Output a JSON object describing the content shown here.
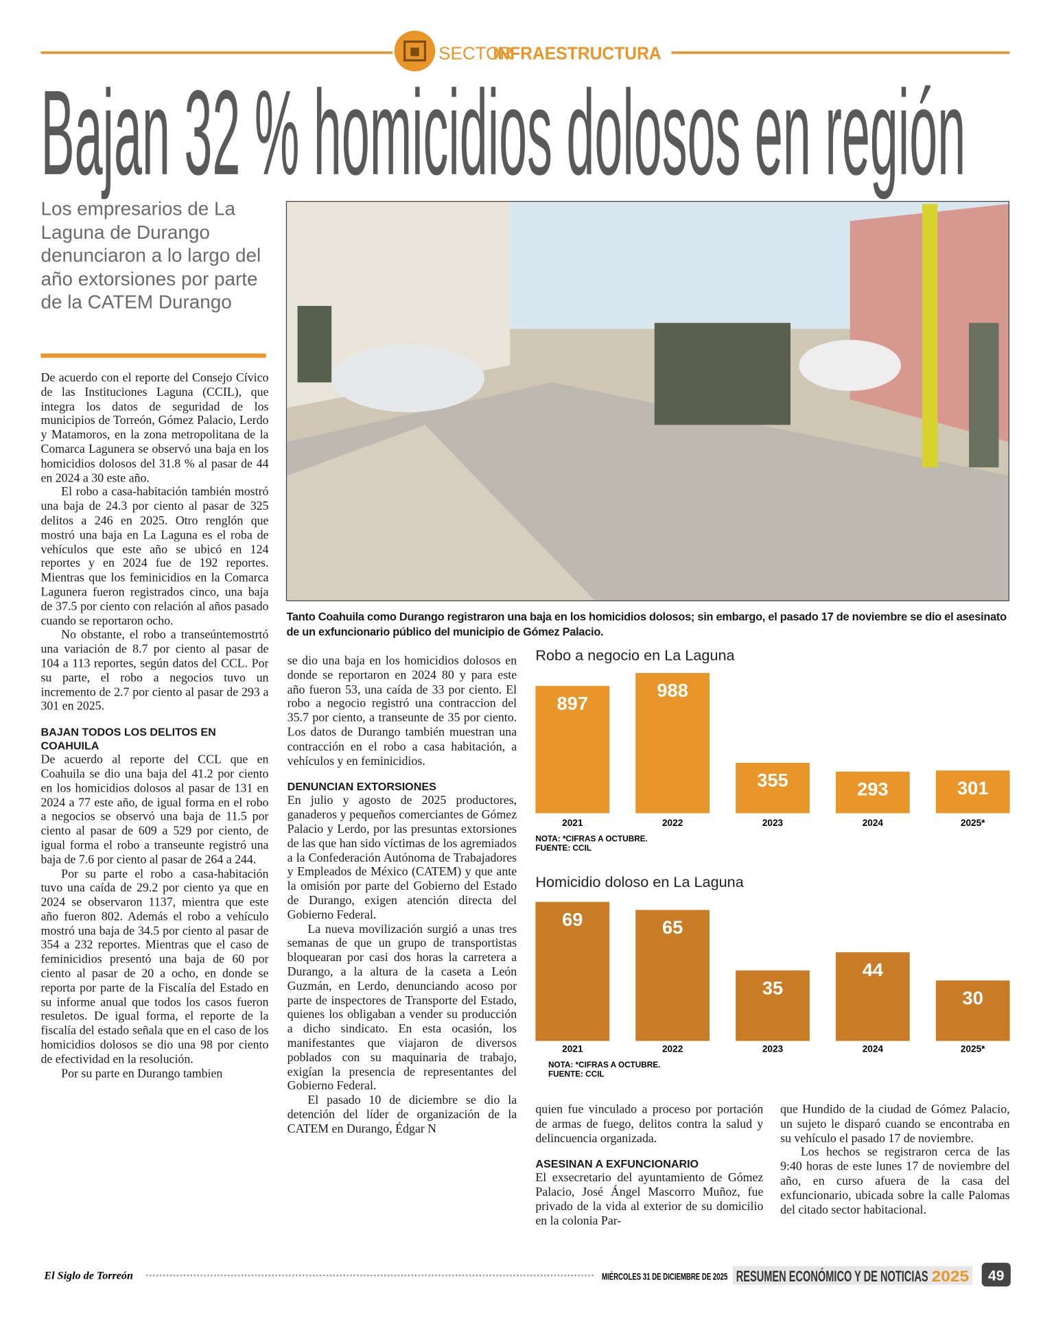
{
  "header": {
    "section_prefix": "SECTOR",
    "section": "INFRAESTRUCTURA",
    "title": "Bajan 32 % homicidios dolosos en región"
  },
  "deck": "Los empresarios de La Laguna de Durango denunciaron a lo largo del año extorsiones por parte de la CATEM Durango",
  "photo_caption": "Tanto Coahuila como Durango registraron una baja en los homicidios dolosos; sin embargo, el pasado 17 de noviembre se dio el asesinato de un exfuncionario público del municipio de Gómez Palacio.",
  "article": {
    "columns": [
      [
        {
          "p": "De acuerdo con el reporte del Consejo Cívico de las Instituciones Laguna (CCIL), que integra los datos de seguridad de los municipios de Torreón, Gómez Palacio, Lerdo y Matamoros, en la zona metropolitana de la Comarca Lagunera se observó una baja en los homicidios dolosos del 31.8 % al pasar de 44 en 2024 a 30 este año."
        },
        {
          "p": "El robo a casa-habitación también mostró una baja de 24.3 por ciento al pasar de 325 delitos a 246 en 2025. Otro renglón que mostró una baja en La Laguna es el roba de vehículos que este año se ubicó en 124 reportes y en 2024 fue de 192 reportes. Mientras que los feminicidios en la Comarca Lagunera fueron registrados cinco, una baja de 37.5 por ciento con relación al años pasado cuando se reportaron ocho."
        },
        {
          "p": "No obstante, el robo a transeúntemostrtó una variación de 8.7 por ciento al pasar de 104 a 113 reportes, según datos del CCL. Por su parte, el robo a negocios tuvo un incremento de 2.7 por ciento al pasar de 293 a 301 en 2025."
        },
        {
          "h": "BAJAN TODOS LOS DELITOS EN COAHUILA"
        },
        {
          "p": "De acuerdo al reporte del CCL que en Coahuila se dio una baja del 41.2 por ciento en los homicidios dolosos al pasar de 131 en 2024 a 77 este año, de igual forma en el robo a negocios se observó una baja de 11.5 por ciento al pasar de 609 a 529 por ciento, de igual forma el robo a transeunte registró una baja de 7.6 por ciento al pasar de 264 a 244."
        },
        {
          "p": "Por su parte el robo a casa-habitación tuvo una caída de 29.2 por ciento ya que en 2024 se observaron 1137, mientra que este año fueron 802. Además el robo a vehículo mostró una baja de 34.5 por ciento al pasar de 354 a 232 reportes. Mientras que el caso de feminicidios presentó una baja de 60 por ciento al pasar de 20 a ocho, en donde se reporta por parte de la Fiscalía del Estado en su informe anual que todos los casos fueron resuletos. De igual forma, el reporte de la fiscalía del estado señala que en el caso de los homicidios dolosos se dio una 98 por ciento de efectividad en la resolución."
        },
        {
          "p": "Por su parte en Durango tambien"
        }
      ],
      [
        {
          "p": "se dio una baja en los homicidios dolosos en donde se reportaron en 2024 80 y para este año fueron 53, una caída de 33 por ciento. El robo a negocio registró una contraccion del 35.7 por ciento, a transeunte de 35 por ciento. Los datos de Durango también muestran una contracción en el robo a casa habitación, a vehículos y en feminicidios."
        },
        {
          "h": "DENUNCIAN EXTORSIONES"
        },
        {
          "p": "En julio y agosto de 2025 productores, ganaderos y pequeños comerciantes de Gómez Palacio y Lerdo, por las presuntas extorsiones de las que han sido víctimas de los agremiados a la Confederación Autónoma de Trabajadores y Empleados de México (CATEM) y que ante la omisión por parte del Gobierno del Estado de Durango, exigen atención directa del Gobierno Federal."
        },
        {
          "p": "La nueva movilización surgió a unas tres semanas de que un grupo de transportistas bloquearan por casi dos horas la carretera a Durango, a la altura de la caseta a León Guzmán, en Lerdo, denunciando acoso por parte de inspectores de Transporte del Estado, quienes los obligaban a vender su producción a dicho sindicato. En esta ocasión, los manifestantes que viajaron de diversos poblados con su maquinaria de trabajo, exigían la presencia de representantes del Gobierno Federal."
        },
        {
          "p": "El pasado 10 de diciembre se dio la detención del líder de organización de la CATEM en Durango, Édgar N"
        }
      ],
      [
        {
          "p": "quien fue vinculado a proceso por portación de armas de fuego, delitos contra la salud y delincuencia organizada."
        },
        {
          "h": "ASESINAN A EXFUNCIONARIO"
        },
        {
          "p": "El exsecretario del ayuntamiento de Gómez Palacio, José Ángel Mascorro Muñoz, fue privado de la vida al exterior de su domicilio en la colonia Par-"
        }
      ],
      [
        {
          "p": "que Hundido de la ciudad de Gómez Palacio, un sujeto le disparó cuando se encontraba en su vehículo el pasado 17 de noviembre."
        },
        {
          "p": "Los hechos se registraron cerca de las 9:40 horas de este lunes 17 de noviembre del año, en curso afuera de la casa del exfuncionario, ubicada sobre la calle Palomas del citado sector habitacional."
        }
      ]
    ]
  },
  "chart_data": [
    {
      "type": "bar",
      "title": "Robo a negocio en La Laguna",
      "categories": [
        "2021",
        "2022",
        "2023",
        "2024",
        "2025*"
      ],
      "values": [
        897,
        988,
        355,
        293,
        301
      ],
      "color": "#e8962a",
      "ylim": [
        0,
        1000
      ],
      "note": "NOTA: *CIFRAS A OCTUBRE.",
      "source": "FUENTE: CCIL"
    },
    {
      "type": "bar",
      "title": "Homicidio doloso en La Laguna",
      "categories": [
        "2021",
        "2022",
        "2023",
        "2024",
        "2025*"
      ],
      "values": [
        69,
        65,
        35,
        44,
        30
      ],
      "color": "#c97c26",
      "ylim": [
        0,
        70
      ],
      "note": "NOTA: *CIFRAS A OCTUBRE.",
      "source": "FUENTE: CCIL"
    }
  ],
  "footer": {
    "brand": "El Siglo de Torreón",
    "date": "MIÉRCOLES 31 DE DICIEMBRE DE 2025",
    "section": "RESUMEN ECONÓMICO Y DE NOTICIAS",
    "year": "2025",
    "page": "49"
  }
}
